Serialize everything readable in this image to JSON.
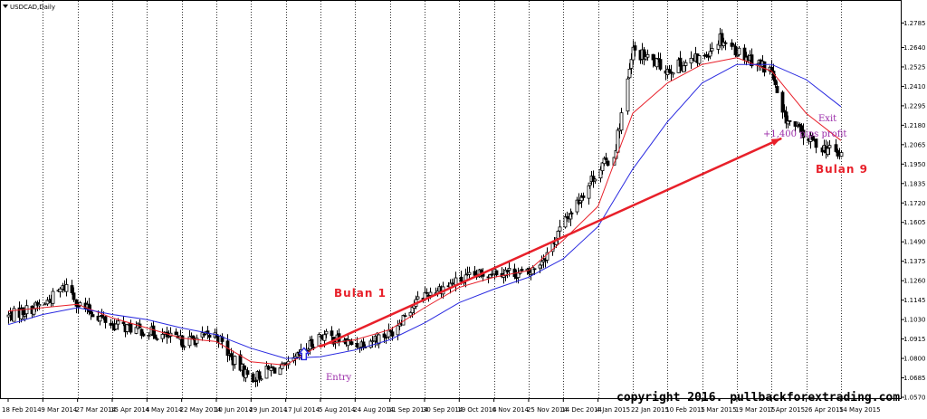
{
  "chart_data": {
    "type": "candlestick",
    "title": "USDCAD,Daily",
    "xlabel": "",
    "ylabel": "",
    "ylim": [
      1.057,
      1.283
    ],
    "grid": "vertical dotted",
    "legend": "none",
    "yticks": [
      1.2785,
      1.264,
      1.2525,
      1.241,
      1.2295,
      1.218,
      1.2065,
      1.195,
      1.1835,
      1.172,
      1.1605,
      1.149,
      1.1375,
      1.126,
      1.1145,
      1.103,
      1.0915,
      1.08,
      1.0685,
      1.057
    ],
    "xticks": [
      "18 Feb 2014",
      "9 Mar 2014",
      "27 Mar 2014",
      "15 Apr 2014",
      "4 May 2014",
      "22 May 2014",
      "10 Jun 2014",
      "29 Jun 2014",
      "17 Jul 2014",
      "5 Aug 2014",
      "24 Aug 2014",
      "11 Sep 2014",
      "30 Sep 2014",
      "19 Oct 2014",
      "6 Nov 2014",
      "25 Nov 2014",
      "14 Dec 2014",
      "4 Jan 2015",
      "22 Jan 2015",
      "10 Feb 2015",
      "1 Mar 2015",
      "19 Mar 2015",
      "7 Apr 2015",
      "26 Apr 2015",
      "14 May 2015"
    ],
    "price_path": [
      [
        "18 Feb 2014",
        1.105
      ],
      [
        "9 Mar 2014",
        1.112
      ],
      [
        "22 Mar 2014",
        1.124
      ],
      [
        "27 Mar 2014",
        1.112
      ],
      [
        "15 Apr 2014",
        1.1
      ],
      [
        "4 May 2014",
        1.096
      ],
      [
        "22 May 2014",
        1.09
      ],
      [
        "10 Jun 2014",
        1.094
      ],
      [
        "18 Jun 2014",
        1.08
      ],
      [
        "29 Jun 2014",
        1.068
      ],
      [
        "10 Jul 2014",
        1.074
      ],
      [
        "17 Jul 2014",
        1.074
      ],
      [
        "5 Aug 2014",
        1.094
      ],
      [
        "24 Aug 2014",
        1.088
      ],
      [
        "11 Sep 2014",
        1.095
      ],
      [
        "20 Sep 2014",
        1.108
      ],
      [
        "30 Sep 2014",
        1.118
      ],
      [
        "19 Oct 2014",
        1.126
      ],
      [
        "6 Nov 2014",
        1.132
      ],
      [
        "25 Nov 2014",
        1.13
      ],
      [
        "5 Dec 2014",
        1.142
      ],
      [
        "14 Dec 2014",
        1.16
      ],
      [
        "4 Jan 2015",
        1.192
      ],
      [
        "12 Jan 2015",
        1.2
      ],
      [
        "22 Jan 2015",
        1.262
      ],
      [
        "10 Feb 2015",
        1.251
      ],
      [
        "1 Mar 2015",
        1.258
      ],
      [
        "10 Mar 2015",
        1.27
      ],
      [
        "19 Mar 2015",
        1.262
      ],
      [
        "7 Apr 2015",
        1.25
      ],
      [
        "12 Apr 2015",
        1.225
      ],
      [
        "26 Apr 2015",
        1.21
      ],
      [
        "14 May 2015",
        1.2
      ]
    ],
    "series": [
      {
        "name": "",
        "color": "#e8202a",
        "type": "moving-average",
        "points": [
          [
            "18 Feb 2014",
            1.108
          ],
          [
            "9 Mar 2014",
            1.11
          ],
          [
            "27 Mar 2014",
            1.112
          ],
          [
            "15 Apr 2014",
            1.104
          ],
          [
            "4 May 2014",
            1.098
          ],
          [
            "22 May 2014",
            1.092
          ],
          [
            "10 Jun 2014",
            1.09
          ],
          [
            "29 Jun 2014",
            1.078
          ],
          [
            "17 Jul 2014",
            1.076
          ],
          [
            "5 Aug 2014",
            1.088
          ],
          [
            "24 Aug 2014",
            1.091
          ],
          [
            "11 Sep 2014",
            1.097
          ],
          [
            "30 Sep 2014",
            1.11
          ],
          [
            "19 Oct 2014",
            1.122
          ],
          [
            "6 Nov 2014",
            1.128
          ],
          [
            "25 Nov 2014",
            1.132
          ],
          [
            "14 Dec 2014",
            1.15
          ],
          [
            "4 Jan 2015",
            1.17
          ],
          [
            "22 Jan 2015",
            1.225
          ],
          [
            "10 Feb 2015",
            1.243
          ],
          [
            "1 Mar 2015",
            1.254
          ],
          [
            "19 Mar 2015",
            1.258
          ],
          [
            "7 Apr 2015",
            1.25
          ],
          [
            "26 Apr 2015",
            1.225
          ],
          [
            "14 May 2015",
            1.209
          ]
        ]
      },
      {
        "name": "",
        "color": "#2a2ae0",
        "type": "moving-average",
        "points": [
          [
            "18 Feb 2014",
            1.1
          ],
          [
            "9 Mar 2014",
            1.106
          ],
          [
            "27 Mar 2014",
            1.11
          ],
          [
            "15 Apr 2014",
            1.106
          ],
          [
            "4 May 2014",
            1.103
          ],
          [
            "22 May 2014",
            1.098
          ],
          [
            "10 Jun 2014",
            1.094
          ],
          [
            "29 Jun 2014",
            1.086
          ],
          [
            "17 Jul 2014",
            1.08
          ],
          [
            "5 Aug 2014",
            1.081
          ],
          [
            "24 Aug 2014",
            1.085
          ],
          [
            "11 Sep 2014",
            1.091
          ],
          [
            "30 Sep 2014",
            1.101
          ],
          [
            "19 Oct 2014",
            1.113
          ],
          [
            "6 Nov 2014",
            1.121
          ],
          [
            "25 Nov 2014",
            1.128
          ],
          [
            "14 Dec 2014",
            1.139
          ],
          [
            "4 Jan 2015",
            1.158
          ],
          [
            "22 Jan 2015",
            1.192
          ],
          [
            "10 Feb 2015",
            1.22
          ],
          [
            "1 Mar 2015",
            1.243
          ],
          [
            "19 Mar 2015",
            1.254
          ],
          [
            "7 Apr 2015",
            1.254
          ],
          [
            "26 Apr 2015",
            1.245
          ],
          [
            "14 May 2015",
            1.229
          ]
        ]
      }
    ],
    "trade_line": {
      "color": "#e8202a",
      "from": [
        "5 Aug 2014",
        1.087
      ],
      "to": [
        "12 Apr 2015",
        1.21
      ]
    },
    "annotations": [
      {
        "text": "Bulan 1",
        "color": "#e8202a",
        "at": [
          "30 Jul 2014",
          1.121
        ]
      },
      {
        "text": "Bulan 9",
        "color": "#e8202a",
        "at": [
          "10 Apr 2015",
          1.2
        ]
      },
      {
        "text": "Entry",
        "color": "#9a2aa8",
        "at": [
          "27 Jul 2014",
          1.076
        ]
      },
      {
        "text": "Exit",
        "color": "#9a2aa8",
        "at": [
          "5 Apr 2015",
          1.227
        ]
      },
      {
        "text": "+1,400 pips profit",
        "color": "#9a2aa8",
        "at": [
          "23 Mar 2015",
          1.217
        ]
      }
    ],
    "entry_marker": {
      "icon": "up-arrow-icon",
      "color": "#2a2ae0",
      "at": [
        "27 Jul 2014",
        1.083
      ]
    },
    "copyright": "copyright 2016. pullbackforextrading.com"
  }
}
